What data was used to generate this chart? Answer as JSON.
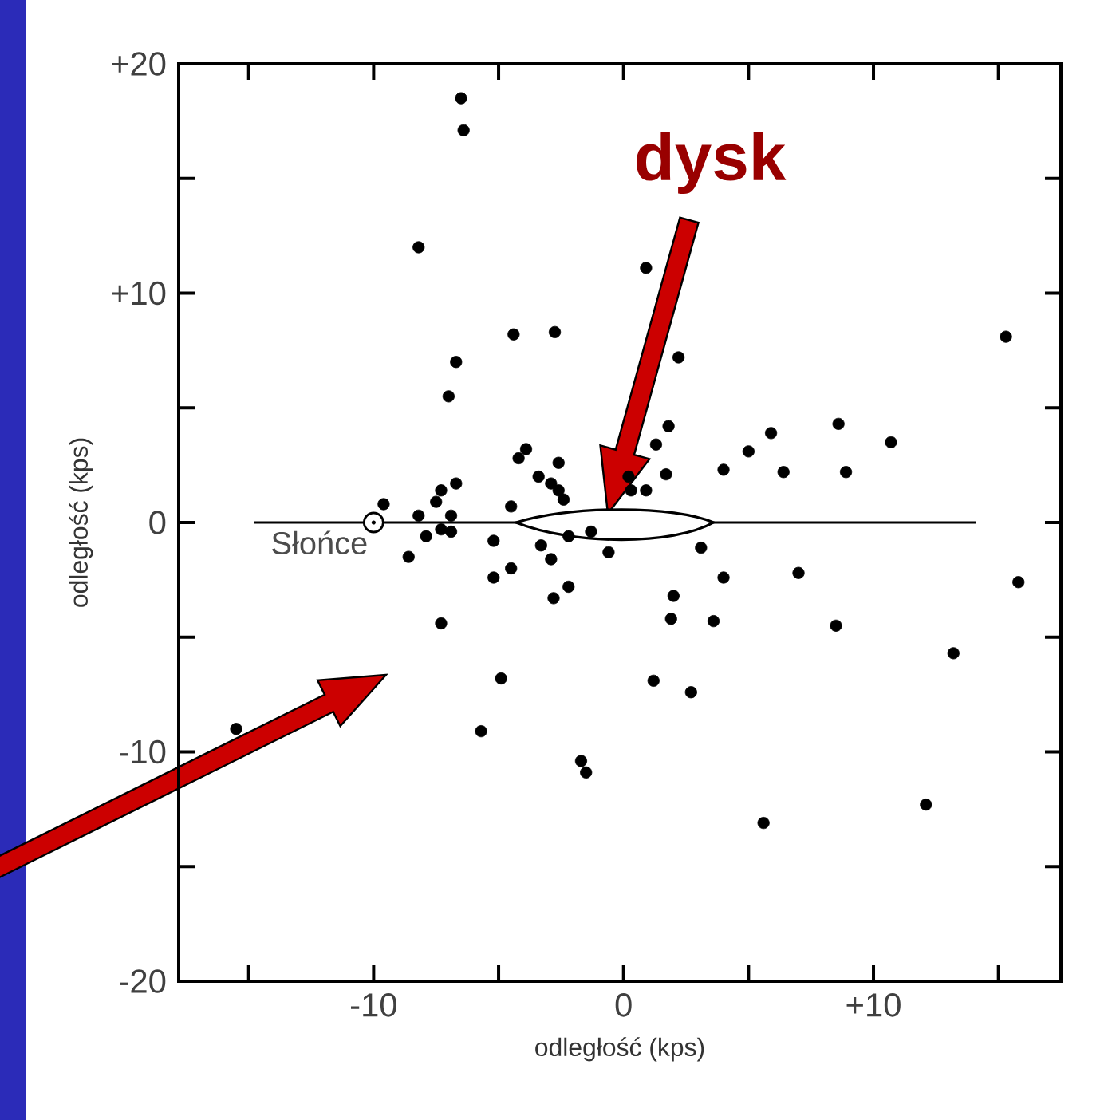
{
  "chart_data": {
    "type": "scatter",
    "xlabel": "odległość (kps)",
    "ylabel": "odległość (kps)",
    "color": "#000000",
    "marker": "circle",
    "x": [
      -6.5,
      -6.4,
      -8.2,
      -4.4,
      -2.75,
      -6.7,
      -7.0,
      -3.9,
      -4.2,
      -2.6,
      -3.4,
      -2.9,
      -2.6,
      -2.4,
      -6.7,
      -7.3,
      -7.5,
      -9.6,
      -4.5,
      -8.2,
      -6.9,
      -7.9,
      -7.3,
      -6.9,
      -8.6,
      -5.2,
      -5.2,
      -4.5,
      -7.3,
      -4.9,
      -5.7,
      -3.3,
      -2.9,
      -2.8,
      -2.2,
      -1.7,
      -1.5,
      -15.5,
      -2.2,
      -1.3,
      -0.6,
      0.9,
      2.2,
      1.8,
      1.3,
      1.7,
      4.0,
      5.0,
      5.9,
      6.4,
      8.6,
      8.9,
      10.7,
      15.3,
      0.2,
      0.3,
      0.9,
      3.1,
      4.0,
      7.0,
      2.0,
      1.9,
      3.6,
      8.5,
      1.2,
      2.7,
      5.6,
      12.1,
      13.2,
      15.8
    ],
    "values": [
      18.5,
      17.1,
      12.0,
      8.2,
      8.3,
      7.0,
      5.5,
      3.2,
      2.8,
      2.6,
      2.0,
      1.7,
      1.4,
      1.0,
      1.7,
      1.4,
      0.9,
      0.8,
      0.7,
      0.3,
      0.3,
      -0.6,
      -0.3,
      -0.4,
      -1.5,
      -0.8,
      -2.4,
      -2.0,
      -4.4,
      -6.8,
      -9.1,
      -1.0,
      -1.6,
      -3.3,
      -2.8,
      -10.4,
      -10.9,
      -9.0,
      -0.6,
      -0.4,
      -1.3,
      11.1,
      7.2,
      4.2,
      3.4,
      2.1,
      2.3,
      3.1,
      3.9,
      2.2,
      4.3,
      2.2,
      3.5,
      8.1,
      2.0,
      1.4,
      1.4,
      -1.1,
      -2.4,
      -2.2,
      -3.2,
      -4.2,
      -4.3,
      -4.5,
      -6.9,
      -7.4,
      -13.1,
      -12.3,
      -5.7,
      -2.6
    ],
    "xlim": [
      -17.8,
      17.5
    ],
    "ylim": [
      -20,
      20
    ],
    "xticks": [
      {
        "value": -15,
        "label": null
      },
      -10,
      {
        "value": -5,
        "label": null
      },
      0,
      {
        "value": 5,
        "label": null
      },
      {
        "value": 10,
        "label": "+10"
      },
      {
        "value": 15,
        "label": null
      }
    ],
    "yticks": [
      -20,
      {
        "value": -15,
        "label": null
      },
      -10,
      {
        "value": -5,
        "label": null
      },
      0,
      {
        "value": 5,
        "label": null
      },
      {
        "value": 10,
        "label": "+10"
      },
      {
        "value": 15,
        "label": null
      },
      {
        "value": 20,
        "label": "+20"
      }
    ],
    "annotations": [
      "dysk",
      {
        "text": "Słońce",
        "x": -10,
        "y": 0
      }
    ]
  }
}
